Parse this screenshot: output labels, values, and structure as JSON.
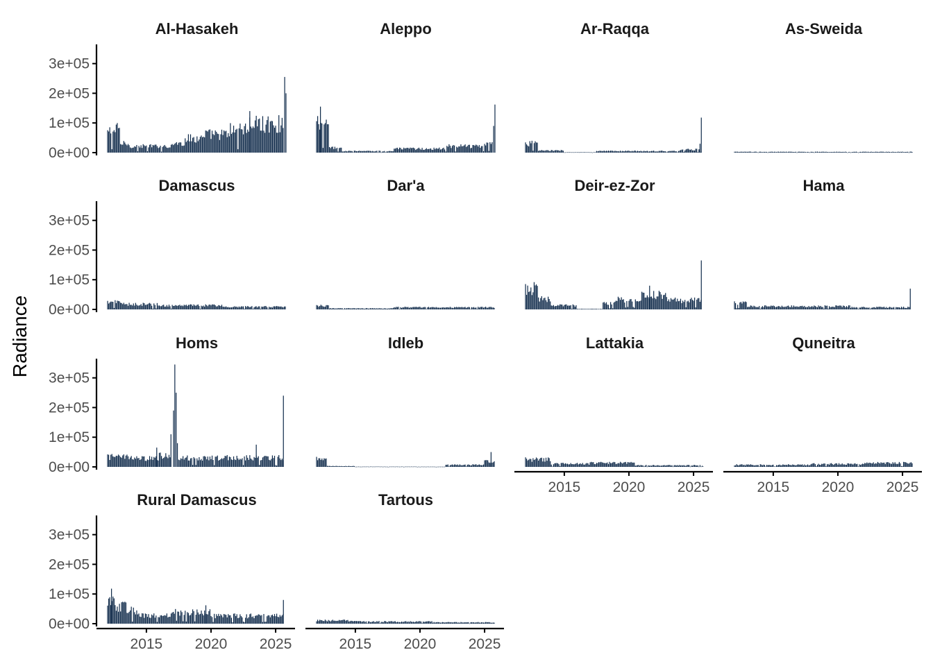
{
  "chart_data": {
    "type": "bar",
    "facet_layout": "4 columns, free-panel strips, shared y axis",
    "ylabel": "Radiance",
    "xlabel": "",
    "ylim": [
      0,
      360000
    ],
    "y_ticks": [
      0,
      100000,
      200000,
      300000
    ],
    "y_tick_labels": [
      "0e+00",
      "1e+05",
      "2e+05",
      "3e+05"
    ],
    "xlim": [
      2011.3,
      2026.5
    ],
    "x_ticks": [
      2015,
      2020,
      2025
    ],
    "x_tick_labels": [
      "2015",
      "2020",
      "2025"
    ],
    "bar_color": "#0f2a4a",
    "grid": false,
    "frequency": "monthly",
    "x_start": "2012-01",
    "x_end": "2025-10",
    "panels": [
      {
        "name": "Al-Hasakeh",
        "bands": [
          {
            "from": 2012.0,
            "to": 2012.5,
            "level": 80000
          },
          {
            "from": 2012.5,
            "to": 2013.0,
            "level": 88000
          },
          {
            "from": 2013.0,
            "to": 2013.6,
            "level": 35000
          },
          {
            "from": 2013.6,
            "to": 2017.0,
            "level": 25000
          },
          {
            "from": 2017.0,
            "to": 2018.0,
            "level": 35000
          },
          {
            "from": 2018.0,
            "to": 2019.5,
            "level": 55000
          },
          {
            "from": 2019.5,
            "to": 2021.5,
            "level": 70000
          },
          {
            "from": 2021.5,
            "to": 2023.0,
            "level": 90000
          },
          {
            "from": 2023.0,
            "to": 2025.6,
            "level": 110000
          }
        ],
        "spikes": [
          {
            "x": 2025.7,
            "y": 255000
          },
          {
            "x": 2025.8,
            "y": 200000
          },
          {
            "x": 2023.0,
            "y": 140000
          }
        ]
      },
      {
        "name": "Aleppo",
        "bands": [
          {
            "from": 2012.0,
            "to": 2012.6,
            "level": 110000
          },
          {
            "from": 2012.6,
            "to": 2013.0,
            "level": 100000
          },
          {
            "from": 2013.0,
            "to": 2014.0,
            "level": 18000
          },
          {
            "from": 2014.0,
            "to": 2018.0,
            "level": 6000
          },
          {
            "from": 2018.0,
            "to": 2022.0,
            "level": 15000
          },
          {
            "from": 2022.0,
            "to": 2025.0,
            "level": 25000
          },
          {
            "from": 2025.0,
            "to": 2025.6,
            "level": 40000
          }
        ],
        "spikes": [
          {
            "x": 2012.3,
            "y": 155000
          },
          {
            "x": 2025.8,
            "y": 162000
          },
          {
            "x": 2025.7,
            "y": 90000
          }
        ]
      },
      {
        "name": "Ar-Raqqa",
        "bands": [
          {
            "from": 2012.0,
            "to": 2013.0,
            "level": 35000
          },
          {
            "from": 2013.0,
            "to": 2015.0,
            "level": 8000
          },
          {
            "from": 2015.0,
            "to": 2017.5,
            "level": 1500
          },
          {
            "from": 2017.5,
            "to": 2024.0,
            "level": 6000
          },
          {
            "from": 2024.0,
            "to": 2025.6,
            "level": 12000
          }
        ],
        "spikes": [
          {
            "x": 2025.6,
            "y": 118000
          },
          {
            "x": 2025.5,
            "y": 30000
          }
        ]
      },
      {
        "name": "As-Sweida",
        "bands": [
          {
            "from": 2012.0,
            "to": 2025.8,
            "level": 3000
          }
        ],
        "spikes": []
      },
      {
        "name": "Damascus",
        "bands": [
          {
            "from": 2012.0,
            "to": 2013.0,
            "level": 28000
          },
          {
            "from": 2013.0,
            "to": 2016.0,
            "level": 20000
          },
          {
            "from": 2016.0,
            "to": 2021.0,
            "level": 15000
          },
          {
            "from": 2021.0,
            "to": 2025.8,
            "level": 10000
          }
        ],
        "spikes": []
      },
      {
        "name": "Dar'a",
        "bands": [
          {
            "from": 2012.0,
            "to": 2013.0,
            "level": 14000
          },
          {
            "from": 2013.0,
            "to": 2018.0,
            "level": 4000
          },
          {
            "from": 2018.0,
            "to": 2025.8,
            "level": 8000
          }
        ],
        "spikes": []
      },
      {
        "name": "Deir-ez-Zor",
        "bands": [
          {
            "from": 2012.0,
            "to": 2013.0,
            "level": 80000
          },
          {
            "from": 2013.0,
            "to": 2014.0,
            "level": 40000
          },
          {
            "from": 2014.0,
            "to": 2016.0,
            "level": 15000
          },
          {
            "from": 2016.0,
            "to": 2018.0,
            "level": 2000
          },
          {
            "from": 2018.0,
            "to": 2019.0,
            "level": 25000
          },
          {
            "from": 2019.0,
            "to": 2021.0,
            "level": 38000
          },
          {
            "from": 2021.0,
            "to": 2023.0,
            "level": 55000
          },
          {
            "from": 2023.0,
            "to": 2025.6,
            "level": 35000
          }
        ],
        "spikes": [
          {
            "x": 2025.6,
            "y": 165000
          },
          {
            "x": 2021.6,
            "y": 80000
          }
        ]
      },
      {
        "name": "Hama",
        "bands": [
          {
            "from": 2012.0,
            "to": 2013.0,
            "level": 25000
          },
          {
            "from": 2013.0,
            "to": 2016.0,
            "level": 12000
          },
          {
            "from": 2016.0,
            "to": 2021.0,
            "level": 12000
          },
          {
            "from": 2021.0,
            "to": 2025.6,
            "level": 8000
          }
        ],
        "spikes": [
          {
            "x": 2025.6,
            "y": 70000
          }
        ]
      },
      {
        "name": "Homs",
        "bands": [
          {
            "from": 2012.0,
            "to": 2014.0,
            "level": 38000
          },
          {
            "from": 2014.0,
            "to": 2016.0,
            "level": 32000
          },
          {
            "from": 2016.0,
            "to": 2016.9,
            "level": 45000
          },
          {
            "from": 2017.5,
            "to": 2021.0,
            "level": 35000
          },
          {
            "from": 2021.0,
            "to": 2025.6,
            "level": 35000
          }
        ],
        "spikes": [
          {
            "x": 2017.2,
            "y": 345000
          },
          {
            "x": 2017.3,
            "y": 250000
          },
          {
            "x": 2017.1,
            "y": 190000
          },
          {
            "x": 2016.9,
            "y": 110000
          },
          {
            "x": 2017.4,
            "y": 80000
          },
          {
            "x": 2025.6,
            "y": 240000
          },
          {
            "x": 2015.8,
            "y": 65000
          },
          {
            "x": 2023.5,
            "y": 75000
          }
        ]
      },
      {
        "name": "Idleb",
        "bands": [
          {
            "from": 2012.0,
            "to": 2012.8,
            "level": 30000
          },
          {
            "from": 2012.8,
            "to": 2015.0,
            "level": 3000
          },
          {
            "from": 2015.0,
            "to": 2022.0,
            "level": 1000
          },
          {
            "from": 2022.0,
            "to": 2025.0,
            "level": 8000
          },
          {
            "from": 2025.0,
            "to": 2025.8,
            "level": 20000
          }
        ],
        "spikes": [
          {
            "x": 2025.5,
            "y": 50000
          }
        ]
      },
      {
        "name": "Lattakia",
        "bands": [
          {
            "from": 2012.0,
            "to": 2014.0,
            "level": 28000
          },
          {
            "from": 2014.0,
            "to": 2017.0,
            "level": 12000
          },
          {
            "from": 2017.0,
            "to": 2020.5,
            "level": 15000
          },
          {
            "from": 2020.5,
            "to": 2025.8,
            "level": 6000
          }
        ],
        "spikes": []
      },
      {
        "name": "Quneitra",
        "bands": [
          {
            "from": 2012.0,
            "to": 2018.0,
            "level": 8000
          },
          {
            "from": 2018.0,
            "to": 2022.0,
            "level": 11000
          },
          {
            "from": 2022.0,
            "to": 2025.8,
            "level": 15000
          }
        ],
        "spikes": []
      },
      {
        "name": "Rural Damascus",
        "bands": [
          {
            "from": 2012.0,
            "to": 2012.6,
            "level": 95000
          },
          {
            "from": 2012.6,
            "to": 2013.5,
            "level": 65000
          },
          {
            "from": 2013.5,
            "to": 2014.5,
            "level": 50000
          },
          {
            "from": 2014.5,
            "to": 2017.0,
            "level": 32000
          },
          {
            "from": 2017.0,
            "to": 2020.0,
            "level": 45000
          },
          {
            "from": 2020.0,
            "to": 2025.6,
            "level": 30000
          }
        ],
        "spikes": [
          {
            "x": 2012.3,
            "y": 118000
          },
          {
            "x": 2025.6,
            "y": 80000
          },
          {
            "x": 2019.6,
            "y": 62000
          }
        ]
      },
      {
        "name": "Tartous",
        "bands": [
          {
            "from": 2012.0,
            "to": 2015.0,
            "level": 12000
          },
          {
            "from": 2015.0,
            "to": 2021.0,
            "level": 8000
          },
          {
            "from": 2021.0,
            "to": 2025.8,
            "level": 5000
          }
        ],
        "spikes": []
      }
    ]
  }
}
